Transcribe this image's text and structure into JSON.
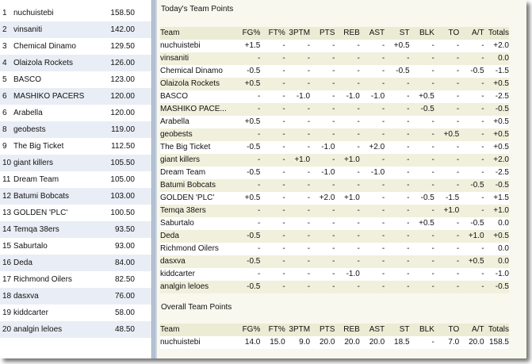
{
  "standings": [
    {
      "rank": "1",
      "team": "nuchuistebi",
      "points": "158.50"
    },
    {
      "rank": "2",
      "team": "vinsaniti",
      "points": "142.00"
    },
    {
      "rank": "3",
      "team": "Chemical Dinamo",
      "points": "129.50"
    },
    {
      "rank": "4",
      "team": "Olaizola Rockets",
      "points": "126.00"
    },
    {
      "rank": "5",
      "team": "BASCO",
      "points": "123.00"
    },
    {
      "rank": "6",
      "team": "MASHIKO PACERS",
      "points": "120.00"
    },
    {
      "rank": "6",
      "team": "Arabella",
      "points": "120.00"
    },
    {
      "rank": "8",
      "team": "geobests",
      "points": "119.00"
    },
    {
      "rank": "9",
      "team": "The Big Ticket",
      "points": "112.50"
    },
    {
      "rank": "10",
      "team": "giant killers",
      "points": "105.50"
    },
    {
      "rank": "11",
      "team": "Dream Team",
      "points": "105.00"
    },
    {
      "rank": "12",
      "team": "Batumi Bobcats",
      "points": "103.00"
    },
    {
      "rank": "13",
      "team": "GOLDEN 'PLC'",
      "points": "100.50"
    },
    {
      "rank": "14",
      "team": "Temqa 38ers",
      "points": "93.50"
    },
    {
      "rank": "15",
      "team": "Saburtalo",
      "points": "93.00"
    },
    {
      "rank": "16",
      "team": "Deda",
      "points": "84.00"
    },
    {
      "rank": "17",
      "team": "Richmond Oilers",
      "points": "82.50"
    },
    {
      "rank": "18",
      "team": "dasxva",
      "points": "76.00"
    },
    {
      "rank": "19",
      "team": "kiddcarter",
      "points": "58.00"
    },
    {
      "rank": "20",
      "team": "analgin leloes",
      "points": "48.50"
    }
  ],
  "todays_points": {
    "title": "Today's Team Points",
    "columns": [
      "Team",
      "FG%",
      "FT%",
      "3PTM",
      "PTS",
      "REB",
      "AST",
      "ST",
      "BLK",
      "TO",
      "A/T",
      "Totals"
    ],
    "rows": [
      [
        "nuchuistebi",
        "+1.5",
        "-",
        "-",
        "-",
        "-",
        "-",
        "+0.5",
        "-",
        "-",
        "-",
        "+2.0"
      ],
      [
        "vinsaniti",
        "-",
        "-",
        "-",
        "-",
        "-",
        "-",
        "-",
        "-",
        "-",
        "-",
        "0.0"
      ],
      [
        "Chemical Dinamo",
        "-0.5",
        "-",
        "-",
        "-",
        "-",
        "-",
        "-0.5",
        "-",
        "-",
        "-0.5",
        "-1.5"
      ],
      [
        "Olaizola Rockets",
        "+0.5",
        "-",
        "-",
        "-",
        "-",
        "-",
        "-",
        "-",
        "-",
        "-",
        "+0.5"
      ],
      [
        "BASCO",
        "-",
        "-",
        "-1.0",
        "-",
        "-1.0",
        "-1.0",
        "-",
        "+0.5",
        "-",
        "-",
        "-2.5"
      ],
      [
        "MASHIKO PACE...",
        "-",
        "-",
        "-",
        "-",
        "-",
        "-",
        "-",
        "-0.5",
        "-",
        "-",
        "-0.5"
      ],
      [
        "Arabella",
        "+0.5",
        "-",
        "-",
        "-",
        "-",
        "-",
        "-",
        "-",
        "-",
        "-",
        "+0.5"
      ],
      [
        "geobests",
        "-",
        "-",
        "-",
        "-",
        "-",
        "-",
        "-",
        "-",
        "+0.5",
        "-",
        "+0.5"
      ],
      [
        "The Big Ticket",
        "-0.5",
        "-",
        "-",
        "-1.0",
        "-",
        "+2.0",
        "-",
        "-",
        "-",
        "-",
        "+0.5"
      ],
      [
        "giant killers",
        "-",
        "-",
        "+1.0",
        "-",
        "+1.0",
        "-",
        "-",
        "-",
        "-",
        "-",
        "+2.0"
      ],
      [
        "Dream Team",
        "-0.5",
        "-",
        "-",
        "-1.0",
        "-",
        "-1.0",
        "-",
        "-",
        "-",
        "-",
        "-2.5"
      ],
      [
        "Batumi Bobcats",
        "-",
        "-",
        "-",
        "-",
        "-",
        "-",
        "-",
        "-",
        "-",
        "-0.5",
        "-0.5"
      ],
      [
        "GOLDEN 'PLC'",
        "+0.5",
        "-",
        "-",
        "+2.0",
        "+1.0",
        "-",
        "-",
        "-0.5",
        "-1.5",
        "-",
        "+1.5"
      ],
      [
        "Temqa 38ers",
        "-",
        "-",
        "-",
        "-",
        "-",
        "-",
        "-",
        "-",
        "+1.0",
        "-",
        "+1.0"
      ],
      [
        "Saburtalo",
        "-",
        "-",
        "-",
        "-",
        "-",
        "-",
        "-",
        "+0.5",
        "-",
        "-0.5",
        "0.0"
      ],
      [
        "Deda",
        "-0.5",
        "-",
        "-",
        "-",
        "-",
        "-",
        "-",
        "-",
        "-",
        "+1.0",
        "+0.5"
      ],
      [
        "Richmond Oilers",
        "-",
        "-",
        "-",
        "-",
        "-",
        "-",
        "-",
        "-",
        "-",
        "-",
        "0.0"
      ],
      [
        "dasxva",
        "-0.5",
        "-",
        "-",
        "-",
        "-",
        "-",
        "-",
        "-",
        "-",
        "+0.5",
        "0.0"
      ],
      [
        "kiddcarter",
        "-",
        "-",
        "-",
        "-",
        "-1.0",
        "-",
        "-",
        "-",
        "-",
        "-",
        "-1.0"
      ],
      [
        "analgin leloes",
        "-0.5",
        "-",
        "-",
        "-",
        "-",
        "-",
        "-",
        "-",
        "-",
        "-",
        "-0.5"
      ]
    ]
  },
  "overall_points": {
    "title": "Overall Team Points",
    "columns": [
      "Team",
      "FG%",
      "FT%",
      "3PTM",
      "PTS",
      "REB",
      "AST",
      "ST",
      "BLK",
      "TO",
      "A/T",
      "Totals"
    ],
    "rows": [
      [
        "nuchuistebi",
        "14.0",
        "15.0",
        "9.0",
        "20.0",
        "20.0",
        "20.0",
        "18.5",
        "-",
        "7.0",
        "20.0",
        "158.5"
      ]
    ]
  }
}
